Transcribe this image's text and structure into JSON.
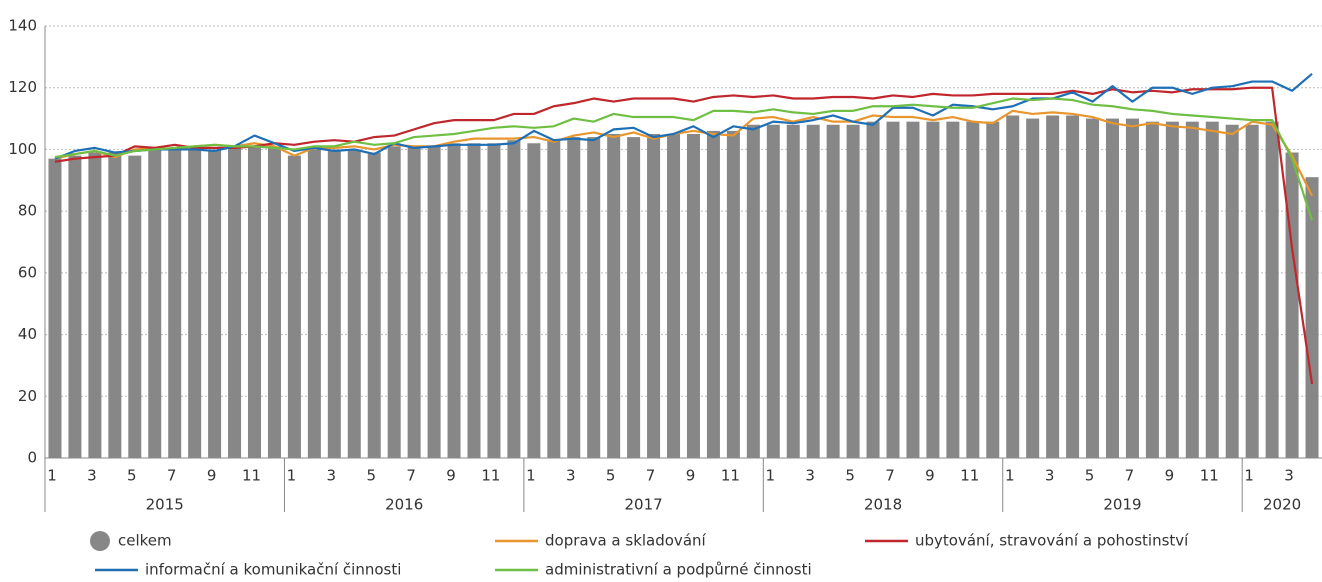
{
  "chart_data": {
    "type": "bar",
    "categories": [
      "1",
      null,
      "3",
      null,
      "5",
      null,
      "7",
      null,
      "9",
      null,
      "11",
      null,
      "1",
      null,
      "3",
      null,
      "5",
      null,
      "7",
      null,
      "9",
      null,
      "11",
      null,
      "1",
      null,
      "3",
      null,
      "5",
      null,
      "7",
      null,
      "9",
      null,
      "11",
      null,
      "1",
      null,
      "3",
      null,
      "5",
      null,
      "7",
      null,
      "9",
      null,
      "11",
      null,
      "1",
      null,
      "3",
      null,
      "5",
      null,
      "7",
      null,
      "9",
      null,
      "11",
      null,
      "1",
      null,
      "3",
      null
    ],
    "years": [
      "2015",
      "2016",
      "2017",
      "2018",
      "2019",
      "2020"
    ],
    "ylim": [
      0,
      140
    ],
    "yticks": [
      0,
      20,
      40,
      60,
      80,
      100,
      120,
      140
    ],
    "grid": true,
    "series": [
      {
        "name": "celkem",
        "type": "bar",
        "color": "#878787",
        "values": [
          97,
          98,
          99,
          99,
          98,
          100,
          100,
          100,
          100,
          101,
          101,
          101,
          98,
          100,
          100,
          100,
          99,
          101,
          101,
          101,
          102,
          102,
          102,
          103,
          102,
          103,
          104,
          104,
          105,
          104,
          105,
          105,
          105,
          106,
          106,
          108,
          108,
          108,
          108,
          108,
          108,
          109,
          109,
          109,
          109,
          109,
          109,
          109,
          111,
          110,
          111,
          111,
          110,
          110,
          110,
          109,
          109,
          109,
          109,
          108,
          108,
          109,
          99,
          91
        ]
      },
      {
        "name": "doprava a skladování",
        "type": "line",
        "color": "#e8962e",
        "values": [
          97,
          98.5,
          99.5,
          97.5,
          100,
          100.5,
          100,
          101,
          101.5,
          101,
          102,
          101,
          98,
          100.5,
          100.5,
          101,
          100,
          101.5,
          101,
          101,
          102.5,
          103.5,
          103.5,
          103.5,
          104,
          102.5,
          104.5,
          105.5,
          104,
          105.5,
          103.5,
          105,
          106,
          105,
          104.5,
          110,
          110.5,
          109,
          110.5,
          109,
          109,
          111,
          110.5,
          110.5,
          109.5,
          110.5,
          109,
          108.5,
          112.5,
          111.5,
          112,
          111.5,
          110.5,
          108.5,
          107.5,
          108.5,
          107.5,
          107,
          106,
          105,
          109,
          108,
          98,
          85
        ]
      },
      {
        "name": "ubytování, stravování a pohostinství",
        "type": "line",
        "color": "#c0272d",
        "values": [
          96,
          97,
          97.5,
          98,
          101,
          100.5,
          101.5,
          100.5,
          100.5,
          100.5,
          101,
          102,
          101.5,
          102.5,
          103,
          102.5,
          104,
          104.5,
          106.5,
          108.5,
          109.5,
          109.5,
          109.5,
          111.5,
          111.5,
          114,
          115,
          116.5,
          115.5,
          116.5,
          116.5,
          116.5,
          115.5,
          117,
          117.5,
          117,
          117.5,
          116.5,
          116.5,
          117,
          117,
          116.5,
          117.5,
          117,
          118,
          117.5,
          117.5,
          118,
          118,
          118,
          118,
          119,
          118,
          119.5,
          118.5,
          119,
          118.5,
          119.5,
          119.5,
          119.5,
          120,
          120,
          68,
          24
        ]
      },
      {
        "name": "informační a komunikační činnosti",
        "type": "line",
        "color": "#1f6fb5",
        "values": [
          97,
          99.5,
          100.5,
          99,
          99.5,
          100,
          100,
          100,
          99.5,
          101,
          104.5,
          102,
          99.5,
          100.5,
          99.5,
          100,
          98.5,
          102,
          100.5,
          101,
          101.5,
          101.5,
          101.5,
          102,
          106,
          103,
          103.5,
          103,
          106.5,
          107,
          104,
          105,
          107.5,
          104,
          107.5,
          106.5,
          109,
          108.5,
          109.5,
          111,
          109,
          108,
          113.5,
          113.5,
          111,
          114.5,
          114,
          113,
          114,
          116.5,
          116.5,
          118.5,
          115.5,
          120.5,
          115.5,
          120,
          120,
          118,
          120,
          120.5,
          122,
          122,
          119,
          124.5
        ]
      },
      {
        "name": "administrativní a podpůrné činnosti",
        "type": "line",
        "color": "#6fbf44",
        "values": [
          97.5,
          98.5,
          99.5,
          98,
          99.5,
          100,
          100.5,
          101,
          101.5,
          101,
          101,
          100.5,
          100,
          101,
          101,
          102.5,
          101.5,
          102,
          104,
          104.5,
          105,
          106,
          107,
          107.5,
          107,
          107.5,
          110,
          109,
          111.5,
          110.5,
          110.5,
          110.5,
          109.5,
          112.5,
          112.5,
          112,
          113,
          112,
          111.5,
          112.5,
          112.5,
          114,
          114,
          114.5,
          114,
          113.5,
          113.5,
          115,
          116.5,
          116,
          116.5,
          116,
          114.5,
          114,
          113,
          112.5,
          111.5,
          111,
          110.5,
          110,
          109.5,
          109.5,
          97,
          77
        ]
      }
    ]
  }
}
